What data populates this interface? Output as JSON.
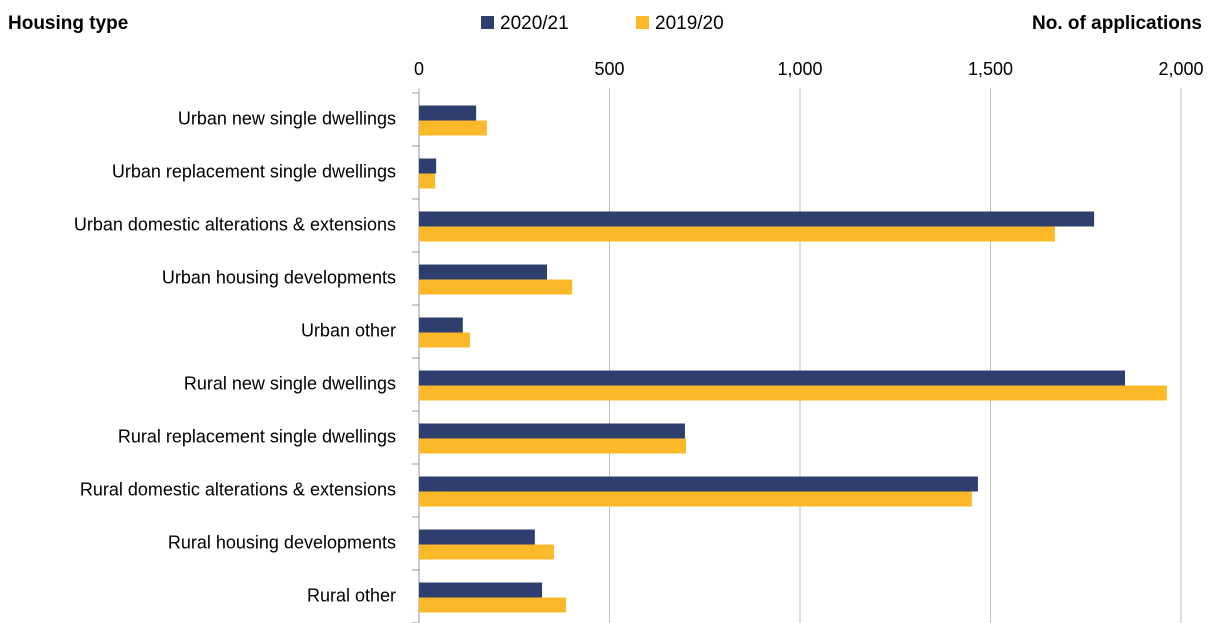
{
  "chart_data": {
    "type": "hbar",
    "y_label": "Housing type",
    "x_label": "No. of applications",
    "categories": [
      "Urban new single dwellings",
      "Urban replacement single dwellings",
      "Urban domestic alterations & extensions",
      "Urban housing developments",
      "Urban other",
      "Rural new single dwellings",
      "Rural replacement single dwellings",
      "Rural domestic alterations & extensions",
      "Rural housing developments",
      "Rural other"
    ],
    "series": [
      {
        "name": "2020/21",
        "color": "#2e3f6e",
        "values": [
          150,
          45,
          1772,
          336,
          115,
          1853,
          698,
          1467,
          304,
          323
        ]
      },
      {
        "name": "2019/20",
        "color": "#fbb829",
        "values": [
          178,
          42,
          1669,
          402,
          134,
          1963,
          701,
          1451,
          354,
          386
        ]
      }
    ],
    "xlim": [
      0,
      2000
    ],
    "xticks": [
      0,
      500,
      {
        "value": 1000,
        "label": "1,000"
      },
      {
        "value": 1500,
        "label": "1,500"
      },
      {
        "value": 2000,
        "label": "2,000"
      }
    ],
    "grid": true
  }
}
